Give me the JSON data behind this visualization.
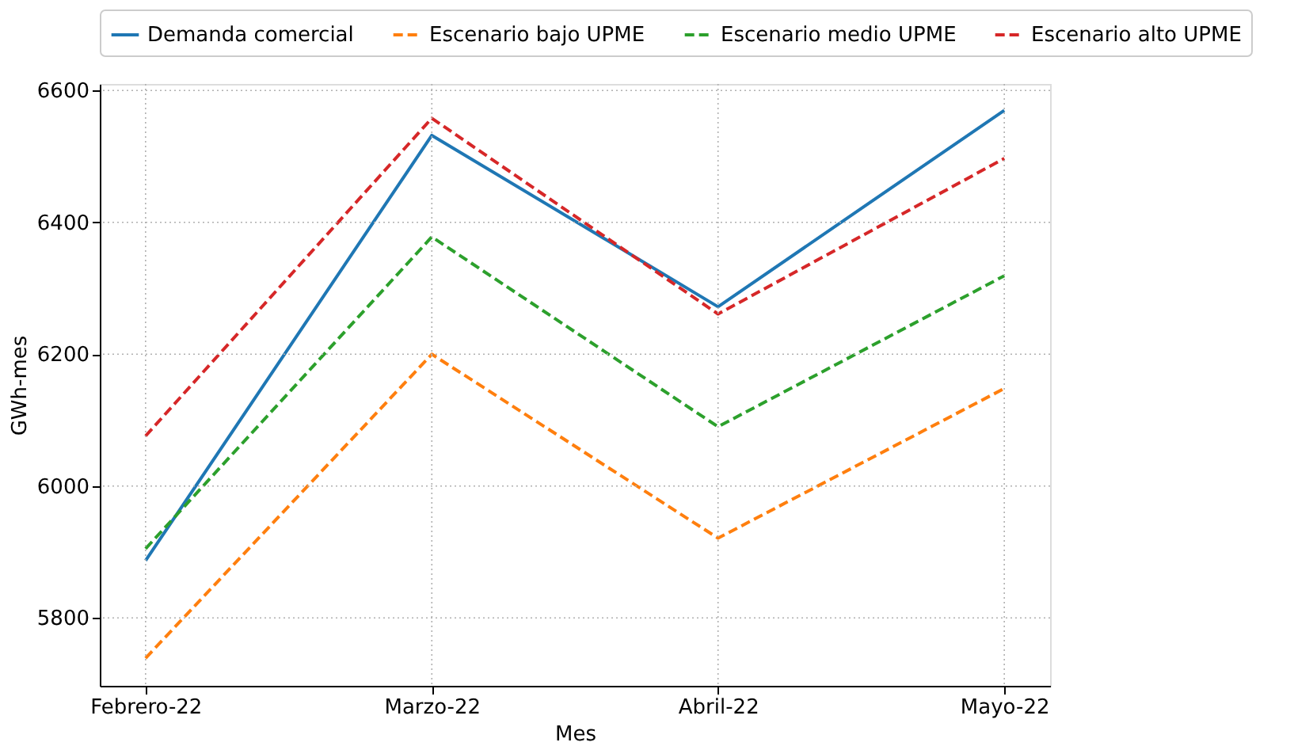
{
  "chart_data": {
    "type": "line",
    "xlabel": "Mes",
    "ylabel": "GWh-mes",
    "categories": [
      "Febrero-22",
      "Marzo-22",
      "Abril-22",
      "Mayo-22"
    ],
    "ylim": [
      5697,
      6610
    ],
    "yticks": [
      5800,
      6000,
      6200,
      6400,
      6600
    ],
    "grid": true,
    "legend": "top",
    "series": [
      {
        "name": "Demanda comercial",
        "color": "#1f77b4",
        "line_style": "solid",
        "values": [
          5887,
          6532,
          6272,
          6570
        ]
      },
      {
        "name": "Escenario bajo UPME",
        "color": "#ff7f0e",
        "line_style": "dashed",
        "values": [
          5739,
          6200,
          5921,
          6148
        ]
      },
      {
        "name": "Escenario medio UPME",
        "color": "#2ca02c",
        "line_style": "dashed",
        "values": [
          5905,
          6378,
          6090,
          6319
        ]
      },
      {
        "name": "Escenario alto UPME",
        "color": "#d62728",
        "line_style": "dashed",
        "values": [
          6076,
          6558,
          6261,
          6497
        ]
      }
    ]
  }
}
